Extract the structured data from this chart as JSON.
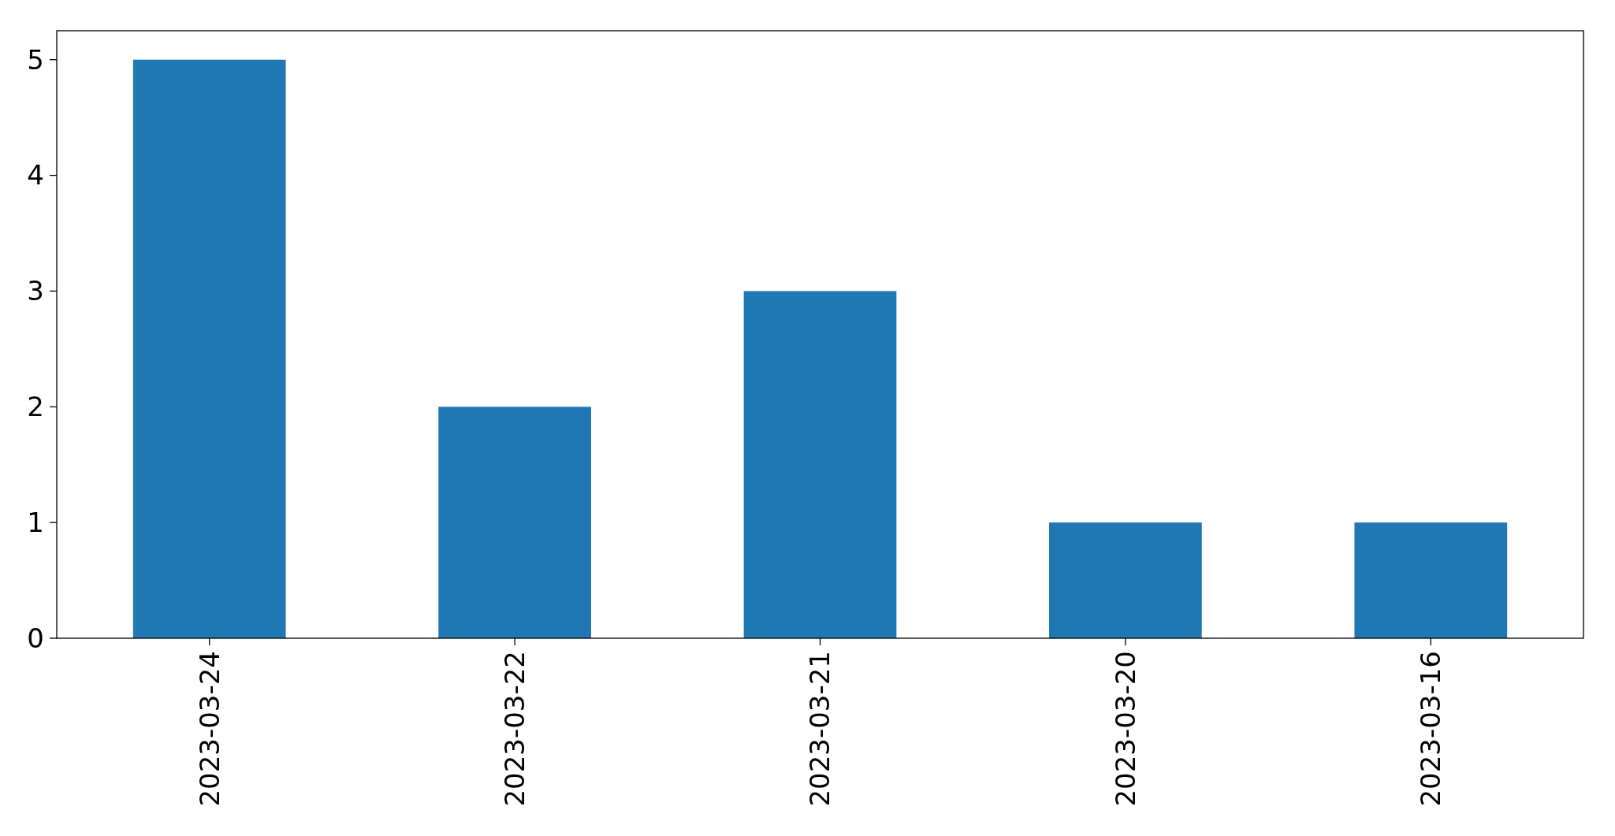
{
  "chart_data": {
    "type": "bar",
    "categories": [
      "2023-03-24",
      "2023-03-22",
      "2023-03-21",
      "2023-03-20",
      "2023-03-16"
    ],
    "values": [
      5,
      2,
      3,
      1,
      1
    ],
    "color": "#1f77b4",
    "ylim": [
      0,
      5.25
    ],
    "yticks": [
      0,
      1,
      2,
      3,
      4,
      5
    ],
    "grid": false
  }
}
